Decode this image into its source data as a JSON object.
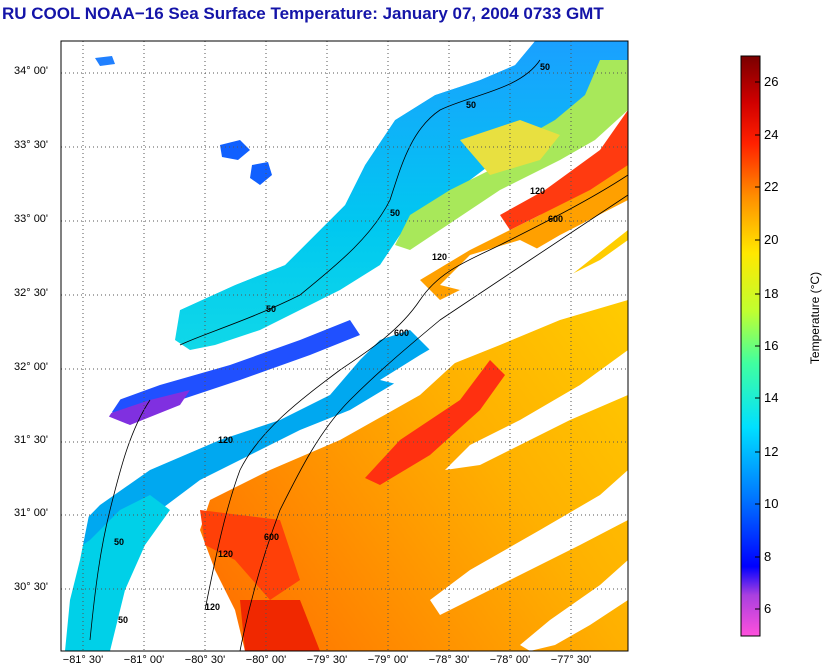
{
  "title": "RU COOL  NOAA−16  Sea Surface Temperature:  January 07, 2004 0733 GMT",
  "map": {
    "latitude_labels": [
      "34° 00'",
      "33° 30'",
      "33° 00'",
      "32° 30'",
      "32° 00'",
      "31° 30'",
      "31° 00'",
      "30° 30'"
    ],
    "longitude_labels": [
      "−81° 30'",
      "−81° 00'",
      "−80° 30'",
      "−80° 00'",
      "−79° 30'",
      "−79° 00'",
      "−78° 30'",
      "−78° 00'",
      "−77° 30'"
    ],
    "contour_labels": [
      {
        "text": "50"
      },
      {
        "text": "50"
      },
      {
        "text": "50"
      },
      {
        "text": "50"
      },
      {
        "text": "50"
      },
      {
        "text": "50"
      },
      {
        "text": "120"
      },
      {
        "text": "120"
      },
      {
        "text": "120"
      },
      {
        "text": "120"
      },
      {
        "text": "120"
      },
      {
        "text": "600"
      },
      {
        "text": "600"
      },
      {
        "text": "600"
      }
    ],
    "layers": [
      "warm-sea",
      "coastal-shelf-water",
      "land",
      "cloud-cover",
      "isobath-contours"
    ]
  },
  "colorbar": {
    "label": "Temperature (°C)",
    "ticks": [
      "26",
      "24",
      "22",
      "20",
      "18",
      "16",
      "14",
      "12",
      "10",
      "8",
      "6"
    ],
    "range": [
      5,
      27
    ],
    "colors": [
      "#ff50dc",
      "#aa40e0",
      "#0000ff",
      "#0078ff",
      "#00e0ff",
      "#40ffa0",
      "#c0ff30",
      "#ffe800",
      "#ff8c00",
      "#ff2000",
      "#d00000",
      "#7a0000"
    ]
  }
}
